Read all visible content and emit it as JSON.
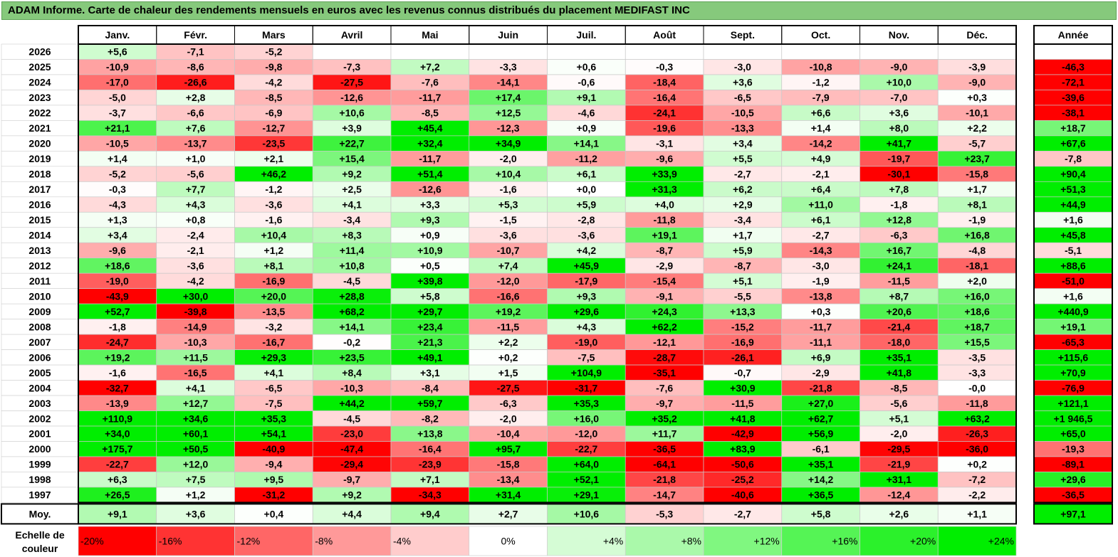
{
  "title": "ADAM Informe. Carte de chaleur des rendements mensuels en euros avec les revenus connus distribués du placement MEDIFAST INC",
  "chart_data": {
    "type": "heatmap",
    "months": [
      "Janv.",
      "Févr.",
      "Mars",
      "Avril",
      "Mai",
      "Juin",
      "Juil.",
      "Août",
      "Sept.",
      "Oct.",
      "Nov.",
      "Déc."
    ],
    "year_header": "Année",
    "rows": [
      {
        "year": "2026",
        "values": [
          "+5,6",
          "-7,1",
          "-5,2",
          "",
          "",
          "",
          "",
          "",
          "",
          "",
          "",
          ""
        ],
        "annual": ""
      },
      {
        "year": "2025",
        "values": [
          "-10,9",
          "-8,6",
          "-9,8",
          "-7,3",
          "+7,2",
          "-3,3",
          "+0,6",
          "-0,3",
          "-3,0",
          "-10,8",
          "-9,0",
          "-3,9"
        ],
        "annual": "-46,3"
      },
      {
        "year": "2024",
        "values": [
          "-17,0",
          "-26,6",
          "-4,2",
          "-27,5",
          "-7,6",
          "-14,1",
          "-0,6",
          "-18,4",
          "+3,6",
          "-1,2",
          "+10,0",
          "-9,0"
        ],
        "annual": "-72,1"
      },
      {
        "year": "2023",
        "values": [
          "-5,0",
          "+2,8",
          "-8,5",
          "-12,6",
          "-11,7",
          "+17,4",
          "+9,1",
          "-16,4",
          "-6,5",
          "-7,9",
          "-7,0",
          "+0,3"
        ],
        "annual": "-39,6"
      },
      {
        "year": "2022",
        "values": [
          "-3,7",
          "-6,6",
          "-6,9",
          "+10,6",
          "-8,5",
          "+12,5",
          "-4,6",
          "-24,1",
          "-10,5",
          "+6,6",
          "+3,6",
          "-10,1"
        ],
        "annual": "-38,1"
      },
      {
        "year": "2021",
        "values": [
          "+21,1",
          "+7,6",
          "-12,7",
          "+3,9",
          "+45,4",
          "-12,3",
          "+0,9",
          "-19,6",
          "-13,3",
          "+1,4",
          "+8,0",
          "+2,2"
        ],
        "annual": "+18,7"
      },
      {
        "year": "2020",
        "values": [
          "-10,5",
          "-13,7",
          "-23,5",
          "+22,7",
          "+32,4",
          "+34,9",
          "+14,1",
          "-3,1",
          "+3,4",
          "-14,2",
          "+41,7",
          "-5,7"
        ],
        "annual": "+67,6"
      },
      {
        "year": "2019",
        "values": [
          "+1,4",
          "+1,0",
          "+2,1",
          "+15,4",
          "-11,7",
          "-2,0",
          "-11,2",
          "-9,6",
          "+5,5",
          "+4,9",
          "-19,7",
          "+23,7"
        ],
        "annual": "-7,8"
      },
      {
        "year": "2018",
        "values": [
          "-5,2",
          "-5,6",
          "+46,2",
          "+9,2",
          "+51,4",
          "+10,4",
          "+6,1",
          "+33,9",
          "-2,7",
          "-2,1",
          "-30,1",
          "-15,8"
        ],
        "annual": "+90,4"
      },
      {
        "year": "2017",
        "values": [
          "-0,3",
          "+7,7",
          "-1,2",
          "+2,5",
          "-12,6",
          "-1,6",
          "+0,0",
          "+31,3",
          "+6,2",
          "+6,4",
          "+7,8",
          "+1,7"
        ],
        "annual": "+51,3"
      },
      {
        "year": "2016",
        "values": [
          "-4,3",
          "+4,3",
          "-3,6",
          "+4,1",
          "+3,3",
          "+5,3",
          "+5,9",
          "+4,0",
          "+2,9",
          "+11,0",
          "-1,8",
          "+8,1"
        ],
        "annual": "+44,9"
      },
      {
        "year": "2015",
        "values": [
          "+1,3",
          "+0,8",
          "-1,6",
          "-3,4",
          "+9,3",
          "-1,5",
          "-2,8",
          "-11,8",
          "-3,4",
          "+6,1",
          "+12,8",
          "-1,9"
        ],
        "annual": "+1,6"
      },
      {
        "year": "2014",
        "values": [
          "+3,4",
          "-2,4",
          "+10,4",
          "+8,3",
          "+0,9",
          "-3,6",
          "-3,6",
          "+19,1",
          "+1,7",
          "-2,7",
          "-6,3",
          "+16,8"
        ],
        "annual": "+45,8"
      },
      {
        "year": "2013",
        "values": [
          "-9,6",
          "-2,1",
          "+1,2",
          "+11,4",
          "+10,9",
          "-10,7",
          "+4,2",
          "-8,7",
          "+5,9",
          "-14,3",
          "+16,7",
          "-4,8"
        ],
        "annual": "-5,1"
      },
      {
        "year": "2012",
        "values": [
          "+18,6",
          "-3,6",
          "+8,1",
          "+10,8",
          "+0,5",
          "+7,4",
          "+45,9",
          "-2,9",
          "-8,7",
          "-3,0",
          "+24,1",
          "-18,1"
        ],
        "annual": "+88,6"
      },
      {
        "year": "2011",
        "values": [
          "-19,0",
          "-4,2",
          "-16,9",
          "-4,5",
          "+39,8",
          "-12,0",
          "-17,9",
          "-15,4",
          "+5,1",
          "-1,9",
          "-11,5",
          "+2,0"
        ],
        "annual": "-51,0"
      },
      {
        "year": "2010",
        "values": [
          "-43,9",
          "+30,0",
          "+20,0",
          "+28,8",
          "+5,8",
          "-16,6",
          "+9,3",
          "-9,1",
          "-5,5",
          "-13,8",
          "+8,7",
          "+16,0"
        ],
        "annual": "+1,6"
      },
      {
        "year": "2009",
        "values": [
          "+52,7",
          "-39,8",
          "-13,5",
          "+68,2",
          "+29,7",
          "+19,2",
          "+29,6",
          "+24,3",
          "+13,3",
          "+0,3",
          "+20,6",
          "+18,6"
        ],
        "annual": "+440,9"
      },
      {
        "year": "2008",
        "values": [
          "-1,8",
          "-14,9",
          "-3,2",
          "+14,1",
          "+23,4",
          "-11,5",
          "+4,3",
          "+62,2",
          "-15,2",
          "-11,7",
          "-21,4",
          "+18,7"
        ],
        "annual": "+19,1"
      },
      {
        "year": "2007",
        "values": [
          "-24,7",
          "-10,3",
          "-16,7",
          "-0,2",
          "+21,3",
          "+2,2",
          "-19,0",
          "-12,1",
          "-16,9",
          "-11,1",
          "-18,0",
          "+15,5"
        ],
        "annual": "-65,3"
      },
      {
        "year": "2006",
        "values": [
          "+19,2",
          "+11,5",
          "+29,3",
          "+23,5",
          "+49,1",
          "+0,2",
          "-7,5",
          "-28,7",
          "-26,1",
          "+6,9",
          "+35,1",
          "-3,5"
        ],
        "annual": "+115,6"
      },
      {
        "year": "2005",
        "values": [
          "-1,6",
          "-16,5",
          "+4,1",
          "+8,4",
          "+3,1",
          "+1,5",
          "+104,9",
          "-35,1",
          "-0,7",
          "-2,9",
          "+41,8",
          "-3,3"
        ],
        "annual": "+70,9"
      },
      {
        "year": "2004",
        "values": [
          "-32,7",
          "+4,1",
          "-6,5",
          "-10,3",
          "-8,4",
          "-27,5",
          "-31,7",
          "-7,6",
          "+30,9",
          "-21,8",
          "-8,5",
          "-0,0"
        ],
        "annual": "-76,9"
      },
      {
        "year": "2003",
        "values": [
          "-13,9",
          "+12,7",
          "-7,5",
          "+44,2",
          "+59,7",
          "-6,3",
          "+35,3",
          "-9,7",
          "-11,5",
          "+27,0",
          "-5,6",
          "-11,8"
        ],
        "annual": "+121,1"
      },
      {
        "year": "2002",
        "values": [
          "+110,9",
          "+34,6",
          "+35,3",
          "-4,5",
          "-8,2",
          "-2,0",
          "+16,0",
          "+35,2",
          "+41,8",
          "+62,7",
          "+5,1",
          "+63,2"
        ],
        "annual": "+1 946,5"
      },
      {
        "year": "2001",
        "values": [
          "+34,0",
          "+60,1",
          "+54,1",
          "-23,0",
          "+13,8",
          "-10,4",
          "-12,0",
          "+11,7",
          "-42,9",
          "+56,9",
          "-2,0",
          "-26,3"
        ],
        "annual": "+65,0"
      },
      {
        "year": "2000",
        "values": [
          "+175,7",
          "+50,5",
          "-40,9",
          "-47,4",
          "-16,4",
          "+95,7",
          "-22,7",
          "-36,5",
          "+83,9",
          "-6,1",
          "-29,5",
          "-36,0"
        ],
        "annual": "-19,3"
      },
      {
        "year": "1999",
        "values": [
          "-22,7",
          "+12,0",
          "-9,4",
          "-29,4",
          "-23,9",
          "-15,8",
          "+64,0",
          "-64,1",
          "-50,6",
          "+35,1",
          "-21,9",
          "+0,2"
        ],
        "annual": "-89,1"
      },
      {
        "year": "1998",
        "values": [
          "+6,3",
          "+7,5",
          "+9,5",
          "-9,7",
          "+7,1",
          "-13,4",
          "+52,1",
          "-21,8",
          "-25,2",
          "+14,2",
          "+31,1",
          "-7,2"
        ],
        "annual": "+29,6"
      },
      {
        "year": "1997",
        "values": [
          "+26,5",
          "+1,2",
          "-31,2",
          "+9,2",
          "-34,3",
          "+31,4",
          "+29,1",
          "-14,7",
          "-40,6",
          "+36,5",
          "-12,4",
          "-2,2"
        ],
        "annual": "-36,5"
      }
    ],
    "average": {
      "label": "Moy.",
      "values": [
        "+9,1",
        "+3,6",
        "+0,4",
        "+4,4",
        "+9,4",
        "+2,7",
        "+10,6",
        "-5,3",
        "-2,7",
        "+5,8",
        "+2,6",
        "+1,1"
      ],
      "annual": "+97,1"
    },
    "scale": {
      "label_line1": "Echelle de",
      "label_line2": "couleur",
      "steps": [
        {
          "label": "-20%",
          "value": -20
        },
        {
          "label": "-16%",
          "value": -16
        },
        {
          "label": "-12%",
          "value": -12
        },
        {
          "label": "-8%",
          "value": -8
        },
        {
          "label": "-4%",
          "value": -4
        },
        {
          "label": "0%",
          "value": 0
        },
        {
          "label": "+4%",
          "value": 4
        },
        {
          "label": "+8%",
          "value": 8
        },
        {
          "label": "+12%",
          "value": 12
        },
        {
          "label": "+16%",
          "value": 16
        },
        {
          "label": "+20%",
          "value": 20
        },
        {
          "label": "+24%",
          "value": 24
        }
      ]
    },
    "colors": {
      "negative": "#ff0000",
      "zero": "#ffffff",
      "positive": "#00ee00",
      "title_bar": "#86c97c"
    }
  }
}
